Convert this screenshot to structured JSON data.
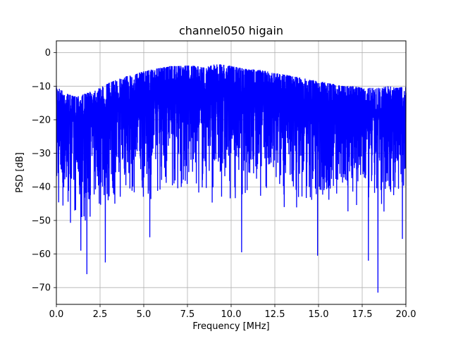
{
  "chart_data": {
    "type": "line",
    "title": "channel050 higain",
    "xlabel": "Frequency [MHz]",
    "ylabel": "PSD [dB]",
    "xlim": [
      0.0,
      20.0
    ],
    "ylim": [
      -75,
      3.5
    ],
    "grid": true,
    "line_color": "#0000ff",
    "x_ticks": [
      0.0,
      2.5,
      5.0,
      7.5,
      10.0,
      12.5,
      15.0,
      17.5,
      20.0
    ],
    "x_tick_labels": [
      "0.0",
      "2.5",
      "5.0",
      "7.5",
      "10.0",
      "12.5",
      "15.0",
      "17.5",
      "20.0"
    ],
    "y_ticks": [
      0,
      -10,
      -20,
      -30,
      -40,
      -50,
      -60,
      -70
    ],
    "y_tick_labels": [
      "0",
      "−10",
      "−20",
      "−30",
      "−40",
      "−50",
      "−60",
      "−70"
    ],
    "envelope": {
      "x": [
        0.0,
        0.5,
        1.0,
        1.5,
        2.0,
        2.5,
        3.0,
        3.5,
        4.0,
        4.5,
        5.0,
        5.5,
        6.0,
        6.5,
        7.0,
        7.5,
        8.0,
        8.5,
        9.0,
        9.5,
        10.0,
        10.5,
        11.0,
        11.5,
        12.0,
        12.5,
        13.0,
        13.5,
        14.0,
        14.5,
        15.0,
        15.5,
        16.0,
        16.5,
        17.0,
        17.5,
        18.0,
        18.5,
        19.0,
        19.5,
        20.0
      ],
      "upper": [
        -10,
        -12,
        -13,
        -12.5,
        -11.5,
        -10.5,
        -9,
        -8,
        -7,
        -6.5,
        -5.5,
        -5,
        -4.5,
        -4,
        -4,
        -3.8,
        -4,
        -4.5,
        -3.5,
        -3.5,
        -4,
        -4.5,
        -5,
        -5,
        -5.5,
        -6,
        -6.5,
        -7,
        -7.5,
        -8,
        -8.5,
        -9,
        -9.5,
        -10,
        -10,
        -10.5,
        -10.5,
        -10.5,
        -10,
        -10.5,
        -10
      ],
      "trough": [
        -50,
        -52,
        -51,
        -53,
        -50,
        -48,
        -48,
        -47,
        -45,
        -45,
        -45,
        -44,
        -43,
        -43,
        -43,
        -44,
        -44,
        -45,
        -46,
        -46,
        -44,
        -44,
        -45,
        -45,
        -45,
        -46,
        -47,
        -47,
        -48,
        -47,
        -48,
        -48,
        -47,
        -48,
        -49,
        -49,
        -49,
        -49,
        -48,
        -46,
        -45
      ]
    },
    "notable_minima": [
      {
        "x": 1.4,
        "y": -59
      },
      {
        "x": 1.75,
        "y": -66
      },
      {
        "x": 2.8,
        "y": -62.5
      },
      {
        "x": 5.35,
        "y": -55
      },
      {
        "x": 10.6,
        "y": -59.5
      },
      {
        "x": 14.95,
        "y": -60.5
      },
      {
        "x": 17.85,
        "y": -62
      },
      {
        "x": 18.4,
        "y": -71.5
      },
      {
        "x": 19.8,
        "y": -55.5
      }
    ]
  }
}
